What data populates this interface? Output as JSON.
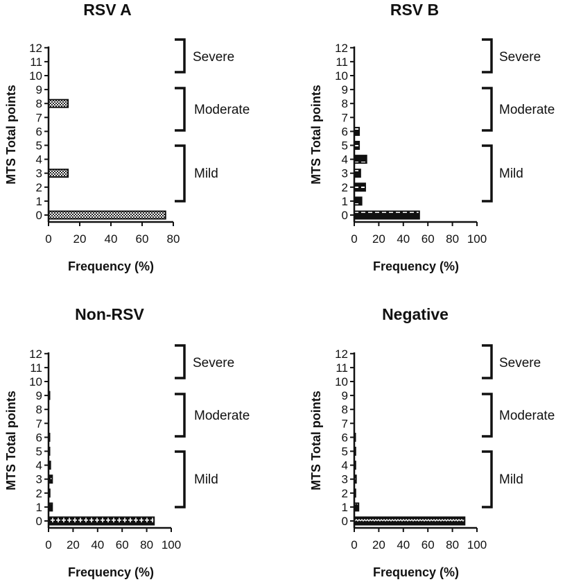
{
  "chart_data": [
    {
      "type": "bar",
      "orientation": "horizontal",
      "title": "RSV A",
      "ylabel": "MTS Total points",
      "xlabel": "Frequency (%)",
      "categories": [
        0,
        1,
        2,
        3,
        4,
        5,
        6,
        7,
        8,
        9,
        10,
        11,
        12
      ],
      "values": [
        75,
        0,
        0,
        12.5,
        0,
        0,
        0,
        0,
        12.5,
        0,
        0,
        0,
        0
      ],
      "xlim": [
        0,
        80
      ],
      "xticks": [
        0,
        20,
        40,
        60,
        80
      ],
      "pattern": "checker",
      "bands": [
        {
          "label": "Severe",
          "from": 10,
          "to": 12
        },
        {
          "label": "Moderate",
          "from": 6,
          "to": 9
        },
        {
          "label": "Mild",
          "from": 1,
          "to": 5
        }
      ]
    },
    {
      "type": "bar",
      "orientation": "horizontal",
      "title": "RSV B",
      "ylabel": "MTS Total points",
      "xlabel": "Frequency (%)",
      "categories": [
        0,
        1,
        2,
        3,
        4,
        5,
        6,
        7,
        8,
        9,
        10,
        11,
        12
      ],
      "values": [
        53,
        6,
        9,
        5,
        10,
        4,
        4,
        0,
        0,
        0,
        0,
        0,
        0
      ],
      "xlim": [
        0,
        100
      ],
      "xticks": [
        0,
        20,
        40,
        60,
        80,
        100
      ],
      "pattern": "dash",
      "bands": [
        {
          "label": "Severe",
          "from": 10,
          "to": 12
        },
        {
          "label": "Moderate",
          "from": 6,
          "to": 9
        },
        {
          "label": "Mild",
          "from": 1,
          "to": 5
        }
      ]
    },
    {
      "type": "bar",
      "orientation": "horizontal",
      "title": "Non-RSV",
      "ylabel": "MTS Total points",
      "xlabel": "Frequency (%)",
      "categories": [
        0,
        1,
        2,
        3,
        4,
        5,
        6,
        7,
        8,
        9,
        10,
        11,
        12
      ],
      "values": [
        86,
        3,
        1,
        3,
        1.5,
        0.5,
        0.5,
        0,
        0,
        0.5,
        0,
        0,
        0
      ],
      "xlim": [
        0,
        100
      ],
      "xticks": [
        0,
        20,
        40,
        60,
        80,
        100
      ],
      "pattern": "plus",
      "bands": [
        {
          "label": "Severe",
          "from": 10,
          "to": 12
        },
        {
          "label": "Moderate",
          "from": 6,
          "to": 9
        },
        {
          "label": "Mild",
          "from": 1,
          "to": 5
        }
      ]
    },
    {
      "type": "bar",
      "orientation": "horizontal",
      "title": "Negative",
      "ylabel": "MTS Total points",
      "xlabel": "Frequency (%)",
      "categories": [
        0,
        1,
        2,
        3,
        4,
        5,
        6,
        7,
        8,
        9,
        10,
        11,
        12
      ],
      "values": [
        90,
        3.5,
        1,
        1.5,
        1,
        1,
        0.5,
        0,
        0,
        0,
        0,
        0,
        0
      ],
      "xlim": [
        0,
        100
      ],
      "xticks": [
        0,
        20,
        40,
        60,
        80,
        100
      ],
      "pattern": "wave",
      "bands": [
        {
          "label": "Severe",
          "from": 10,
          "to": 12
        },
        {
          "label": "Moderate",
          "from": 6,
          "to": 9
        },
        {
          "label": "Mild",
          "from": 1,
          "to": 5
        }
      ]
    }
  ]
}
